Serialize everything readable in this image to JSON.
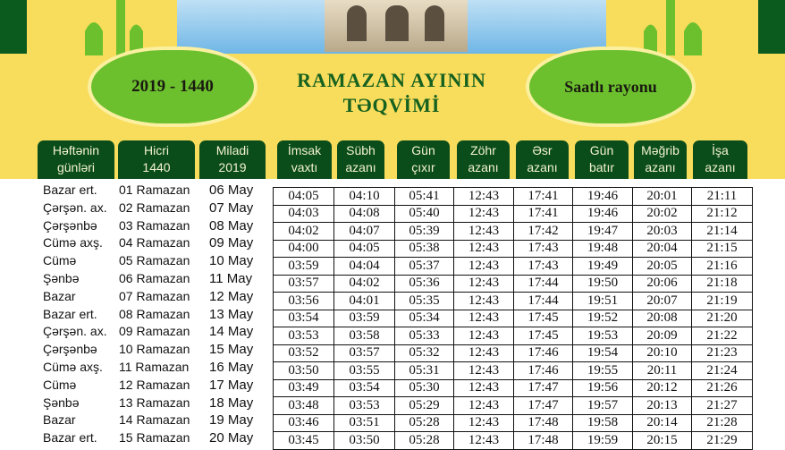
{
  "header": {
    "year_badge": "2019 - 1440",
    "title_line1": "RAMAZAN AYININ",
    "title_line2": "TƏQVİMİ",
    "region_badge": "Saatlı rayonu",
    "colors": {
      "yellow": "#f8dc5c",
      "dark_green": "#0b4d1a",
      "light_green": "#6cc02e"
    }
  },
  "columns": [
    [
      "Həftənin",
      "günləri"
    ],
    [
      "Hicri",
      "1440"
    ],
    [
      "Miladi",
      "2019"
    ],
    [
      "İmsak",
      "vaxtı"
    ],
    [
      "Sübh",
      "azanı"
    ],
    [
      "Gün",
      "çıxır"
    ],
    [
      "Zöhr",
      "azanı"
    ],
    [
      "Əsr",
      "azanı"
    ],
    [
      "Gün",
      "batır"
    ],
    [
      "Məğrib",
      "azanı"
    ],
    [
      "İşa",
      "azanı"
    ]
  ],
  "rows": [
    [
      "Bazar ert.",
      "01 Ramazan",
      "06 May",
      "04:05",
      "04:10",
      "05:41",
      "12:43",
      "17:41",
      "19:46",
      "20:01",
      "21:11"
    ],
    [
      "Çərşən. ax.",
      "02 Ramazan",
      "07 May",
      "04:03",
      "04:08",
      "05:40",
      "12:43",
      "17:41",
      "19:46",
      "20:02",
      "21:12"
    ],
    [
      "Çərşənbə",
      "03 Ramazan",
      "08 May",
      "04:02",
      "04:07",
      "05:39",
      "12:43",
      "17:42",
      "19:47",
      "20:03",
      "21:14"
    ],
    [
      "Cümə axş.",
      "04 Ramazan",
      "09 May",
      "04:00",
      "04:05",
      "05:38",
      "12:43",
      "17:43",
      "19:48",
      "20:04",
      "21:15"
    ],
    [
      "Cümə",
      "05 Ramazan",
      "10 May",
      "03:59",
      "04:04",
      "05:37",
      "12:43",
      "17:43",
      "19:49",
      "20:05",
      "21:16"
    ],
    [
      "Şənbə",
      "06 Ramazan",
      "11 May",
      "03:57",
      "04:02",
      "05:36",
      "12:43",
      "17:44",
      "19:50",
      "20:06",
      "21:18"
    ],
    [
      "Bazar",
      "07 Ramazan",
      "12 May",
      "03:56",
      "04:01",
      "05:35",
      "12:43",
      "17:44",
      "19:51",
      "20:07",
      "21:19"
    ],
    [
      "Bazar ert.",
      "08 Ramazan",
      "13 May",
      "03:54",
      "03:59",
      "05:34",
      "12:43",
      "17:45",
      "19:52",
      "20:08",
      "21:20"
    ],
    [
      "Çərşən. ax.",
      "09 Ramazan",
      "14 May",
      "03:53",
      "03:58",
      "05:33",
      "12:43",
      "17:45",
      "19:53",
      "20:09",
      "21:22"
    ],
    [
      "Çərşənbə",
      "10 Ramazan",
      "15 May",
      "03:52",
      "03:57",
      "05:32",
      "12:43",
      "17:46",
      "19:54",
      "20:10",
      "21:23"
    ],
    [
      "Cümə axş.",
      "11 Ramazan",
      "16 May",
      "03:50",
      "03:55",
      "05:31",
      "12:43",
      "17:46",
      "19:55",
      "20:11",
      "21:24"
    ],
    [
      "Cümə",
      "12 Ramazan",
      "17 May",
      "03:49",
      "03:54",
      "05:30",
      "12:43",
      "17:47",
      "19:56",
      "20:12",
      "21:26"
    ],
    [
      "Şənbə",
      "13 Ramazan",
      "18 May",
      "03:48",
      "03:53",
      "05:29",
      "12:43",
      "17:47",
      "19:57",
      "20:13",
      "21:27"
    ],
    [
      "Bazar",
      "14 Ramazan",
      "19 May",
      "03:46",
      "03:51",
      "05:28",
      "12:43",
      "17:48",
      "19:58",
      "20:14",
      "21:28"
    ],
    [
      "Bazar ert.",
      "15 Ramazan",
      "20 May",
      "03:45",
      "03:50",
      "05:28",
      "12:43",
      "17:48",
      "19:59",
      "20:15",
      "21:29"
    ]
  ]
}
